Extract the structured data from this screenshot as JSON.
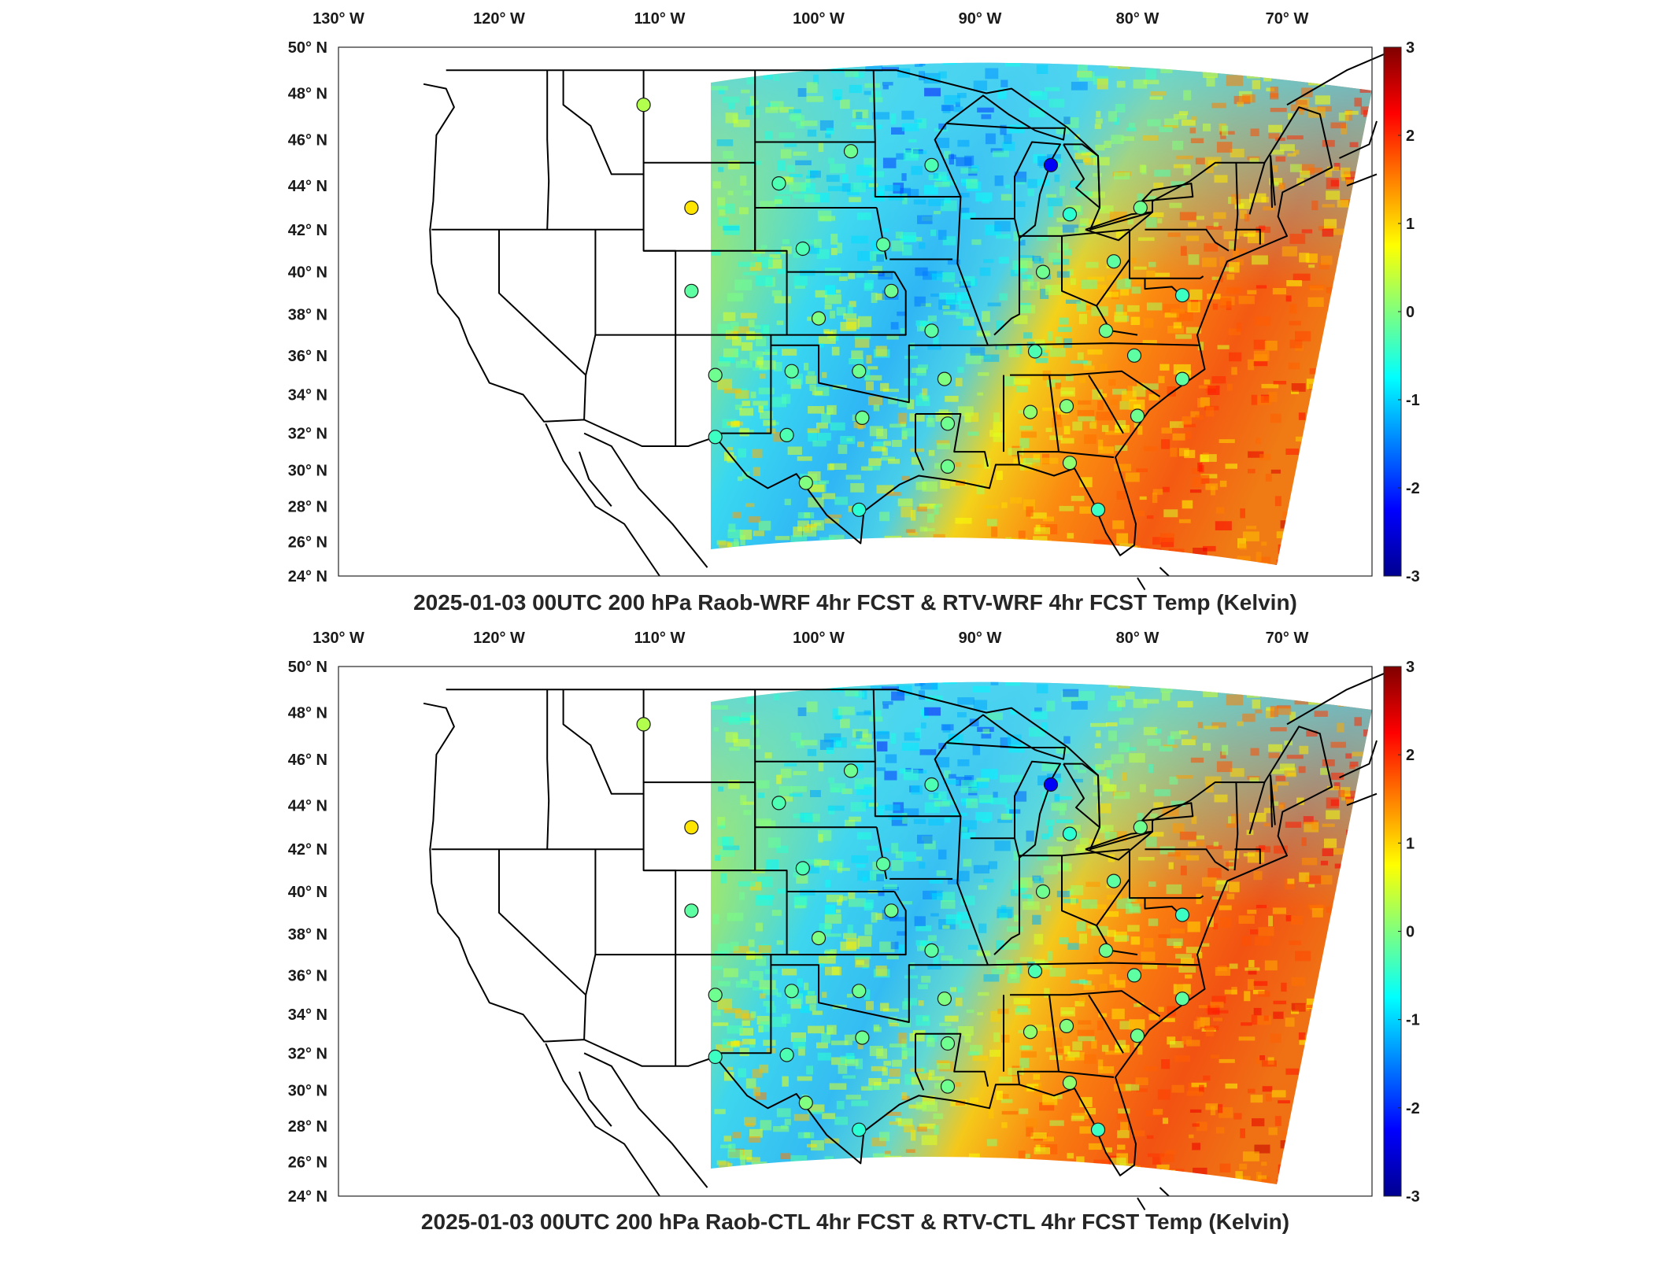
{
  "chart_data": [
    {
      "type": "heatmap",
      "title": "2025-01-03 00UTC 200 hPa Raob-WRF 4hr FCST & RTV-WRF 4hr FCST Temp (Kelvin)",
      "x_ticks": [
        "130° W",
        "120° W",
        "110° W",
        "100° W",
        "90° W",
        "80° W",
        "70° W"
      ],
      "y_ticks": [
        "50° N",
        "48° N",
        "46° N",
        "44° N",
        "42° N",
        "40° N",
        "38° N",
        "36° N",
        "34° N",
        "32° N",
        "30° N",
        "28° N",
        "26° N",
        "24° N"
      ],
      "colorbar": {
        "min": -3,
        "max": 3,
        "ticks": [
          "3",
          "2",
          "1",
          "0",
          "-1",
          "-2",
          "-3"
        ]
      },
      "stations": [
        {
          "lon": -111.0,
          "lat": 47.5,
          "value": 0.3
        },
        {
          "lon": -108.0,
          "lat": 43.0,
          "value": 0.9
        },
        {
          "lon": -108.0,
          "lat": 39.1,
          "value": -0.2
        },
        {
          "lon": -102.5,
          "lat": 44.1,
          "value": -0.3
        },
        {
          "lon": -98.0,
          "lat": 45.5,
          "value": -0.1
        },
        {
          "lon": -93.0,
          "lat": 44.9,
          "value": -0.3
        },
        {
          "lon": -85.5,
          "lat": 44.9,
          "value": -2.3
        },
        {
          "lon": -84.3,
          "lat": 42.7,
          "value": -0.5
        },
        {
          "lon": -79.8,
          "lat": 43.0,
          "value": -0.1
        },
        {
          "lon": -101.0,
          "lat": 41.1,
          "value": -0.3
        },
        {
          "lon": -96.0,
          "lat": 41.3,
          "value": -0.2
        },
        {
          "lon": -86.0,
          "lat": 40.0,
          "value": -0.1
        },
        {
          "lon": -81.5,
          "lat": 40.5,
          "value": -0.2
        },
        {
          "lon": -77.0,
          "lat": 38.9,
          "value": -0.4
        },
        {
          "lon": -100.0,
          "lat": 37.8,
          "value": 0.0
        },
        {
          "lon": -95.5,
          "lat": 39.1,
          "value": -0.1
        },
        {
          "lon": -93.0,
          "lat": 37.2,
          "value": -0.2
        },
        {
          "lon": -86.5,
          "lat": 36.2,
          "value": -0.3
        },
        {
          "lon": -82.0,
          "lat": 37.2,
          "value": -0.1
        },
        {
          "lon": -80.2,
          "lat": 36.0,
          "value": -0.2
        },
        {
          "lon": -106.5,
          "lat": 35.0,
          "value": -0.1
        },
        {
          "lon": -101.7,
          "lat": 35.2,
          "value": -0.2
        },
        {
          "lon": -97.5,
          "lat": 35.2,
          "value": -0.1
        },
        {
          "lon": -92.2,
          "lat": 34.8,
          "value": 0.0
        },
        {
          "lon": -86.8,
          "lat": 33.1,
          "value": 0.1
        },
        {
          "lon": -84.5,
          "lat": 33.4,
          "value": 0.0
        },
        {
          "lon": -80.0,
          "lat": 32.9,
          "value": -0.1
        },
        {
          "lon": -77.0,
          "lat": 34.8,
          "value": -0.2
        },
        {
          "lon": -106.5,
          "lat": 31.8,
          "value": -0.4
        },
        {
          "lon": -102.0,
          "lat": 31.9,
          "value": -0.3
        },
        {
          "lon": -97.3,
          "lat": 32.8,
          "value": -0.1
        },
        {
          "lon": -92.0,
          "lat": 32.5,
          "value": -0.1
        },
        {
          "lon": -100.8,
          "lat": 29.3,
          "value": 0.0
        },
        {
          "lon": -92.0,
          "lat": 30.2,
          "value": -0.1
        },
        {
          "lon": -97.5,
          "lat": 27.8,
          "value": -0.5
        },
        {
          "lon": -84.3,
          "lat": 30.4,
          "value": 0.1
        },
        {
          "lon": -82.5,
          "lat": 27.8,
          "value": -0.4
        }
      ]
    },
    {
      "type": "heatmap",
      "title": "2025-01-03 00UTC 200 hPa Raob-CTL 4hr FCST & RTV-CTL 4hr FCST Temp (Kelvin)",
      "x_ticks": [
        "130° W",
        "120° W",
        "110° W",
        "100° W",
        "90° W",
        "80° W",
        "70° W"
      ],
      "y_ticks": [
        "50° N",
        "48° N",
        "46° N",
        "44° N",
        "42° N",
        "40° N",
        "38° N",
        "36° N",
        "34° N",
        "32° N",
        "30° N",
        "28° N",
        "26° N",
        "24° N"
      ],
      "colorbar": {
        "min": -3,
        "max": 3,
        "ticks": [
          "3",
          "2",
          "1",
          "0",
          "-1",
          "-2",
          "-3"
        ]
      },
      "stations": [
        {
          "lon": -111.0,
          "lat": 47.5,
          "value": 0.3
        },
        {
          "lon": -108.0,
          "lat": 43.0,
          "value": 0.9
        },
        {
          "lon": -108.0,
          "lat": 39.1,
          "value": -0.2
        },
        {
          "lon": -102.5,
          "lat": 44.1,
          "value": -0.3
        },
        {
          "lon": -98.0,
          "lat": 45.5,
          "value": -0.1
        },
        {
          "lon": -93.0,
          "lat": 44.9,
          "value": -0.3
        },
        {
          "lon": -85.5,
          "lat": 44.9,
          "value": -2.3
        },
        {
          "lon": -84.3,
          "lat": 42.7,
          "value": -0.5
        },
        {
          "lon": -79.8,
          "lat": 43.0,
          "value": -0.1
        },
        {
          "lon": -101.0,
          "lat": 41.1,
          "value": -0.3
        },
        {
          "lon": -96.0,
          "lat": 41.3,
          "value": -0.2
        },
        {
          "lon": -86.0,
          "lat": 40.0,
          "value": -0.1
        },
        {
          "lon": -81.5,
          "lat": 40.5,
          "value": -0.2
        },
        {
          "lon": -77.0,
          "lat": 38.9,
          "value": -0.4
        },
        {
          "lon": -100.0,
          "lat": 37.8,
          "value": 0.0
        },
        {
          "lon": -95.5,
          "lat": 39.1,
          "value": -0.1
        },
        {
          "lon": -93.0,
          "lat": 37.2,
          "value": -0.2
        },
        {
          "lon": -86.5,
          "lat": 36.2,
          "value": -0.3
        },
        {
          "lon": -82.0,
          "lat": 37.2,
          "value": -0.1
        },
        {
          "lon": -80.2,
          "lat": 36.0,
          "value": -0.2
        },
        {
          "lon": -106.5,
          "lat": 35.0,
          "value": -0.1
        },
        {
          "lon": -101.7,
          "lat": 35.2,
          "value": -0.2
        },
        {
          "lon": -97.5,
          "lat": 35.2,
          "value": -0.1
        },
        {
          "lon": -92.2,
          "lat": 34.8,
          "value": 0.0
        },
        {
          "lon": -86.8,
          "lat": 33.1,
          "value": 0.1
        },
        {
          "lon": -84.5,
          "lat": 33.4,
          "value": 0.0
        },
        {
          "lon": -80.0,
          "lat": 32.9,
          "value": -0.1
        },
        {
          "lon": -77.0,
          "lat": 34.8,
          "value": -0.2
        },
        {
          "lon": -106.5,
          "lat": 31.8,
          "value": -0.4
        },
        {
          "lon": -102.0,
          "lat": 31.9,
          "value": -0.3
        },
        {
          "lon": -97.3,
          "lat": 32.8,
          "value": -0.1
        },
        {
          "lon": -92.0,
          "lat": 32.5,
          "value": -0.1
        },
        {
          "lon": -100.8,
          "lat": 29.3,
          "value": 0.0
        },
        {
          "lon": -92.0,
          "lat": 30.2,
          "value": -0.1
        },
        {
          "lon": -97.5,
          "lat": 27.8,
          "value": -0.5
        },
        {
          "lon": -84.3,
          "lat": 30.4,
          "value": 0.1
        },
        {
          "lon": -82.5,
          "lat": 27.8,
          "value": -0.4
        }
      ]
    }
  ]
}
